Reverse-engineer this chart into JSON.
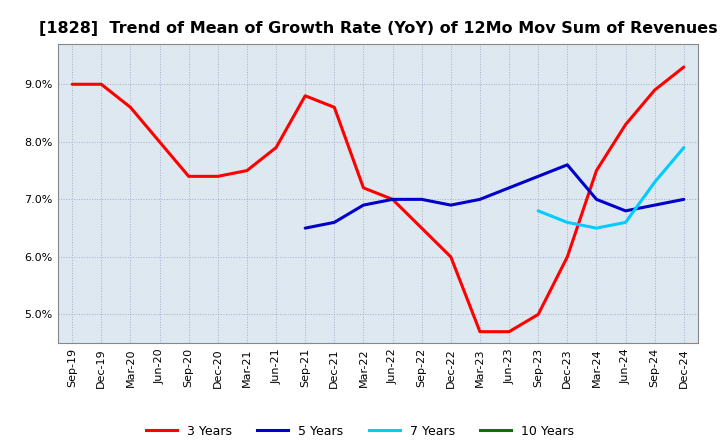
{
  "title": "[1828]  Trend of Mean of Growth Rate (YoY) of 12Mo Mov Sum of Revenues",
  "title_fontsize": 11.5,
  "background_color": "#ffffff",
  "plot_bg_color": "#dde8f0",
  "grid_color": "#aaaacc",
  "grid_style": "dotted",
  "ylim": [
    0.045,
    0.097
  ],
  "yticks": [
    0.05,
    0.06,
    0.07,
    0.08,
    0.09
  ],
  "x_labels": [
    "Sep-19",
    "Dec-19",
    "Mar-20",
    "Jun-20",
    "Sep-20",
    "Dec-20",
    "Mar-21",
    "Jun-21",
    "Sep-21",
    "Dec-21",
    "Mar-22",
    "Jun-22",
    "Sep-22",
    "Dec-22",
    "Mar-23",
    "Jun-23",
    "Sep-23",
    "Dec-23",
    "Mar-24",
    "Jun-24",
    "Sep-24",
    "Dec-24"
  ],
  "series": [
    {
      "name": "3 Years",
      "color": "#ff0000",
      "x": [
        0,
        1,
        2,
        3,
        4,
        5,
        6,
        7,
        8,
        9,
        10,
        11,
        12,
        13,
        14,
        15,
        16,
        17,
        18,
        19,
        20,
        21
      ],
      "y": [
        0.09,
        0.09,
        0.086,
        0.08,
        0.074,
        0.074,
        0.075,
        0.079,
        0.088,
        0.086,
        0.072,
        0.07,
        0.065,
        0.06,
        0.047,
        0.047,
        0.05,
        0.06,
        0.075,
        0.083,
        0.089,
        0.093
      ]
    },
    {
      "name": "5 Years",
      "color": "#0000cc",
      "x": [
        8,
        9,
        10,
        11,
        12,
        13,
        14,
        15,
        16,
        17,
        18,
        19,
        20,
        21
      ],
      "y": [
        0.065,
        0.066,
        0.069,
        0.07,
        0.07,
        0.069,
        0.07,
        0.072,
        0.074,
        0.076,
        0.07,
        0.068,
        0.069,
        0.07
      ]
    },
    {
      "name": "7 Years",
      "color": "#00ccff",
      "x": [
        16,
        17,
        18,
        19,
        20,
        21
      ],
      "y": [
        0.068,
        0.066,
        0.065,
        0.066,
        0.073,
        0.079
      ]
    },
    {
      "name": "10 Years",
      "color": "#007700",
      "x": [],
      "y": []
    }
  ],
  "legend_colors": [
    "#ff0000",
    "#0000cc",
    "#00ccff",
    "#007700"
  ],
  "legend_names": [
    "3 Years",
    "5 Years",
    "7 Years",
    "10 Years"
  ]
}
